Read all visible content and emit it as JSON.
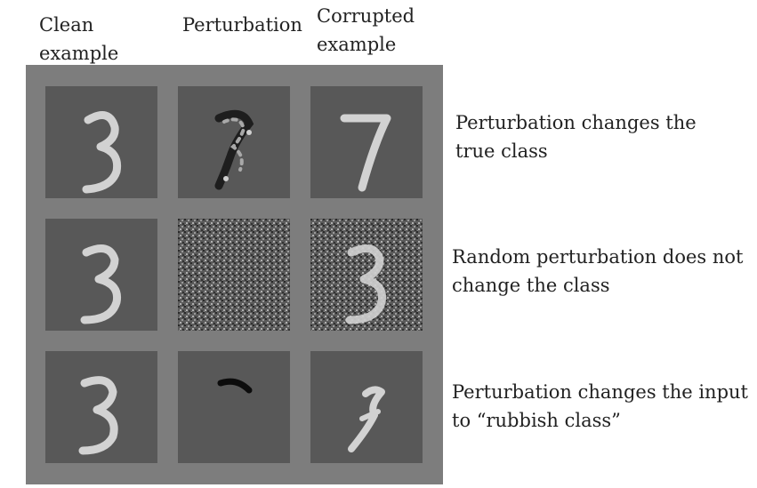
{
  "headers": {
    "clean": "Clean\nexample",
    "perturbation": "Perturbation",
    "corrupted": "Corrupted\nexample"
  },
  "rows": [
    {
      "description": "Perturbation changes the true class"
    },
    {
      "description": "Random perturbation does not change the class"
    },
    {
      "description": "Perturbation changes the input to “rubbish class”"
    }
  ],
  "colors": {
    "panel": "#7d7d7d",
    "cell": "#585858",
    "stroke": "#d2d2d2"
  }
}
